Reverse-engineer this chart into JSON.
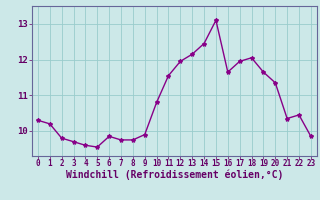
{
  "hours": [
    0,
    1,
    2,
    3,
    4,
    5,
    6,
    7,
    8,
    9,
    10,
    11,
    12,
    13,
    14,
    15,
    16,
    17,
    18,
    19,
    20,
    21,
    22,
    23
  ],
  "values": [
    10.3,
    10.2,
    9.8,
    9.7,
    9.6,
    9.55,
    9.85,
    9.75,
    9.75,
    9.9,
    10.8,
    11.55,
    11.95,
    12.15,
    12.45,
    13.1,
    11.65,
    11.95,
    12.05,
    11.65,
    11.35,
    10.35,
    10.45,
    9.85
  ],
  "line_color": "#880088",
  "marker": "*",
  "markersize": 3,
  "linewidth": 1.0,
  "xlabel": "Windchill (Refroidissement éolien,°C)",
  "xlabel_fontsize": 7,
  "bg_color": "#cce8e8",
  "grid_color": "#99cccc",
  "tick_color": "#660066",
  "spine_color": "#666699",
  "xlim": [
    -0.5,
    23.5
  ],
  "ylim": [
    9.3,
    13.5
  ],
  "yticks": [
    10,
    11,
    12,
    13
  ],
  "xticks": [
    0,
    1,
    2,
    3,
    4,
    5,
    6,
    7,
    8,
    9,
    10,
    11,
    12,
    13,
    14,
    15,
    16,
    17,
    18,
    19,
    20,
    21,
    22,
    23
  ],
  "xtick_fontsize": 5.5,
  "ytick_fontsize": 6.5
}
